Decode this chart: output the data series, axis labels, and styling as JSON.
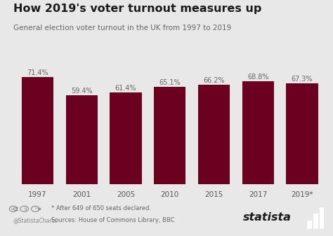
{
  "title": "How 2019's voter turnout measures up",
  "subtitle": "General election voter turnout in the UK from 1997 to 2019",
  "categories": [
    "1997",
    "2001",
    "2005",
    "2010",
    "2015",
    "2017",
    "2019*"
  ],
  "values": [
    71.4,
    59.4,
    61.4,
    65.1,
    66.2,
    68.8,
    67.3
  ],
  "labels": [
    "71.4%",
    "59.4%",
    "61.4%",
    "65.1%",
    "66.2%",
    "68.8%",
    "67.3%"
  ],
  "bar_color": "#6b0020",
  "background_color": "#e8e8e8",
  "title_fontsize": 11.5,
  "subtitle_fontsize": 7.5,
  "label_fontsize": 7,
  "tick_fontsize": 7.5,
  "ylim": [
    0,
    82
  ],
  "footnote_line1": "* After 649 of 650 seats declared.",
  "footnote_line2": "Sources: House of Commons Library, BBC",
  "statista_text": "statista",
  "footer_bg": "#d8d8d8"
}
